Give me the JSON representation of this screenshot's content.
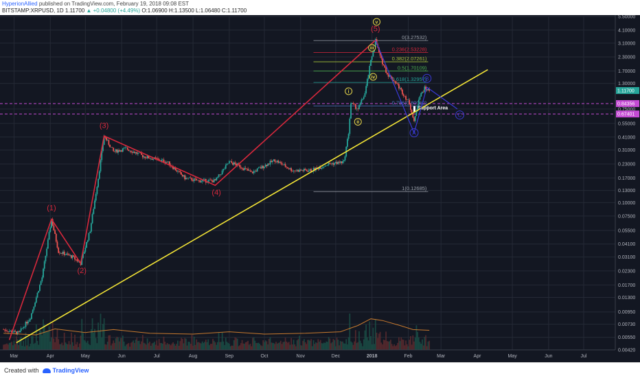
{
  "header": {
    "author": "HyperionAllied",
    "published": " published on TradingView.com, February 19, 2018 09:08 EST",
    "symbol": "BITSTAMP:XRPUSD, 1D",
    "last": "1.11700",
    "change": "▲ +0.04800 (+4.49%)",
    "ohlc": "O:1.06900 H:1.13500 L:1.06480 C:1.11700"
  },
  "footer": {
    "created": "Created with",
    "brand": "TradingView"
  },
  "colors": {
    "background": "#131722",
    "grid": "#252a36",
    "trendline": "#f5e636",
    "wave_major": "#d8283c",
    "wave_minor": "#e6d64a",
    "correction": "#3a3ad6",
    "candle_up": "#26a69a",
    "candle_down": "#ef5350",
    "volume_ma": "#c87a2e",
    "support_line": "#c44bd4"
  },
  "chart_data": {
    "type": "candlestick",
    "scale": "log",
    "ylim": [
      0.0042,
      5.5
    ],
    "x_tick_labels": [
      "Mar",
      "Apr",
      "May",
      "Jun",
      "Jul",
      "Aug",
      "Sep",
      "Oct",
      "Nov",
      "Dec",
      "2018",
      "Feb",
      "Mar",
      "Apr",
      "May",
      "Jun",
      "Jul"
    ],
    "y_tick_labels": [
      "5.50000",
      "4.10000",
      "3.10000",
      "2.30000",
      "1.70000",
      "1.30000",
      "0.75000",
      "0.55000",
      "0.41000",
      "0.31000",
      "0.23000",
      "0.17000",
      "0.13000",
      "0.10000",
      "0.07500",
      "0.05500",
      "0.04100",
      "0.03100",
      "0.02300",
      "0.01700",
      "0.01300",
      "0.00950",
      "0.00730",
      "0.00550",
      "0.00420"
    ],
    "y_ticks": [
      5.5,
      4.1,
      3.1,
      2.3,
      1.7,
      1.3,
      0.75,
      0.55,
      0.41,
      0.31,
      0.23,
      0.17,
      0.13,
      0.1,
      0.075,
      0.055,
      0.041,
      0.031,
      0.023,
      0.017,
      0.013,
      0.0095,
      0.0073,
      0.0055,
      0.0042
    ],
    "price_badges": [
      {
        "label": "1.11700",
        "value": 1.117,
        "color": "#26a69a"
      },
      {
        "label": "0.84356",
        "value": 0.84356,
        "color": "#c44bd4"
      },
      {
        "label": "0.67401",
        "value": 0.67401,
        "color": "#c44bd4"
      }
    ],
    "price_series": [
      [
        "2017-02-20",
        0.0065
      ],
      [
        "2017-03-05",
        0.006
      ],
      [
        "2017-03-15",
        0.0085
      ],
      [
        "2017-03-25",
        0.02
      ],
      [
        "2017-04-02",
        0.07
      ],
      [
        "2017-04-08",
        0.035
      ],
      [
        "2017-04-20",
        0.031
      ],
      [
        "2017-04-27",
        0.027
      ],
      [
        "2017-05-05",
        0.055
      ],
      [
        "2017-05-12",
        0.17
      ],
      [
        "2017-05-17",
        0.42
      ],
      [
        "2017-05-25",
        0.3
      ],
      [
        "2017-06-05",
        0.32
      ],
      [
        "2017-06-20",
        0.27
      ],
      [
        "2017-07-10",
        0.24
      ],
      [
        "2017-07-25",
        0.17
      ],
      [
        "2017-08-05",
        0.16
      ],
      [
        "2017-08-20",
        0.16
      ],
      [
        "2017-09-01",
        0.24
      ],
      [
        "2017-09-10",
        0.22
      ],
      [
        "2017-09-20",
        0.19
      ],
      [
        "2017-10-10",
        0.25
      ],
      [
        "2017-10-25",
        0.2
      ],
      [
        "2017-11-10",
        0.2
      ],
      [
        "2017-11-25",
        0.23
      ],
      [
        "2017-12-08",
        0.24
      ],
      [
        "2017-12-12",
        0.45
      ],
      [
        "2017-12-14",
        0.85
      ],
      [
        "2017-12-20",
        0.75
      ],
      [
        "2017-12-26",
        1.05
      ],
      [
        "2017-12-31",
        2.1
      ],
      [
        "2018-01-04",
        3.3
      ],
      [
        "2018-01-08",
        2.3
      ],
      [
        "2018-01-14",
        1.6
      ],
      [
        "2018-01-22",
        1.3
      ],
      [
        "2018-02-02",
        0.85
      ],
      [
        "2018-02-06",
        0.56
      ],
      [
        "2018-02-10",
        0.95
      ],
      [
        "2018-02-15",
        1.17
      ],
      [
        "2018-02-19",
        1.117
      ]
    ],
    "volume_ma": [
      [
        "2017-02-20",
        0.006
      ],
      [
        "2017-03-20",
        0.0058
      ],
      [
        "2017-04-05",
        0.0066
      ],
      [
        "2017-05-01",
        0.0061
      ],
      [
        "2017-05-25",
        0.0065
      ],
      [
        "2017-06-25",
        0.006
      ],
      [
        "2017-08-01",
        0.0059
      ],
      [
        "2017-09-01",
        0.0062
      ],
      [
        "2017-10-01",
        0.0059
      ],
      [
        "2017-11-05",
        0.006
      ],
      [
        "2017-12-05",
        0.0062
      ],
      [
        "2017-12-20",
        0.0071
      ],
      [
        "2017-12-31",
        0.0082
      ],
      [
        "2018-01-10",
        0.0079
      ],
      [
        "2018-01-25",
        0.0071
      ],
      [
        "2018-02-05",
        0.0065
      ],
      [
        "2018-02-19",
        0.0064
      ]
    ],
    "trendline": [
      [
        "2017-03-03",
        0.0049
      ],
      [
        "2018-04-10",
        1.75
      ]
    ],
    "fibonacci": [
      {
        "label": "0(3.27532)",
        "value": 3.27532,
        "color": "#9aa0aa"
      },
      {
        "label": "0.236(2.53228)",
        "value": 2.53228,
        "color": "#d8283c"
      },
      {
        "label": "0.382(2.07261)",
        "value": 2.07261,
        "color": "#a9c43a"
      },
      {
        "label": "0.5(1.70109)",
        "value": 1.70109,
        "color": "#4caf50"
      },
      {
        "label": "0.618(1.32957)",
        "value": 1.32957,
        "color": "#26a69a"
      },
      {
        "label": "0.786(0.80062)",
        "value": 0.80062,
        "color": "#4f7ac7"
      },
      {
        "label": "1(0.12685)",
        "value": 0.12685,
        "color": "#9aa0aa"
      }
    ],
    "fib_range": [
      "2017-11-12",
      "2018-02-18"
    ],
    "support_levels": [
      0.84356,
      0.67401
    ],
    "support_label": "Support Area",
    "wave_major_path": [
      [
        "2017-02-25",
        0.0052
      ],
      [
        "2017-04-02",
        0.07
      ],
      [
        "2017-04-27",
        0.027
      ],
      [
        "2017-05-17",
        0.42
      ],
      [
        "2017-08-20",
        0.145
      ],
      [
        "2018-01-04",
        3.3
      ]
    ],
    "wave_major_labels": [
      {
        "label": "(1)",
        "x": "2017-04-02",
        "y": 0.085
      },
      {
        "label": "(2)",
        "x": "2017-04-28",
        "y": 0.022
      },
      {
        "label": "(3)",
        "x": "2017-05-17",
        "y": 0.5
      },
      {
        "label": "(4)",
        "x": "2017-08-21",
        "y": 0.118
      },
      {
        "label": "(5)",
        "x": "2018-01-04",
        "y": 4.0
      }
    ],
    "wave_minor_labels": [
      {
        "label": "i",
        "x": "2017-12-12",
        "y": 1.1
      },
      {
        "label": "ii",
        "x": "2017-12-20",
        "y": 0.57
      },
      {
        "label": "iii",
        "x": "2018-01-01",
        "y": 2.8
      },
      {
        "label": "iv",
        "x": "2018-01-02",
        "y": 1.5
      },
      {
        "label": "v",
        "x": "2018-01-05",
        "y": 4.9
      }
    ],
    "correction_path": [
      [
        "2018-01-04",
        3.3
      ],
      [
        "2018-02-06",
        0.45
      ],
      [
        "2018-02-17",
        1.2
      ],
      [
        "2018-03-15",
        0.75
      ]
    ],
    "correction_labels": [
      {
        "label": "A",
        "x": "2018-02-06",
        "y": 0.45
      },
      {
        "label": "B",
        "x": "2018-02-17",
        "y": 1.45
      },
      {
        "label": "C",
        "x": "2018-03-17",
        "y": 0.66
      }
    ]
  }
}
